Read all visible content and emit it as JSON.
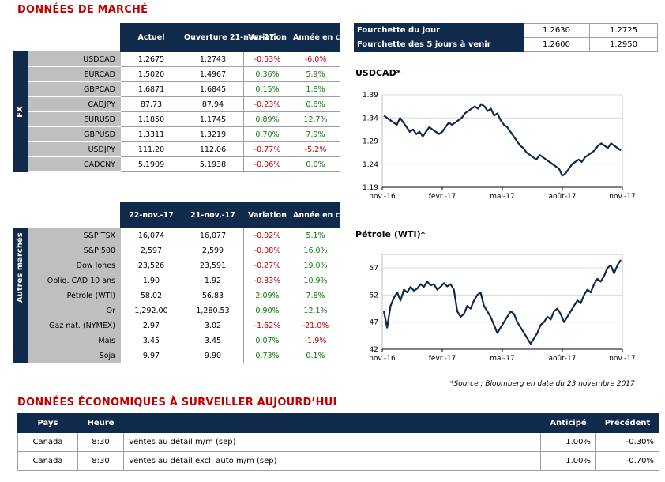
{
  "market_title": "DONNÉES DE MARCHÉ",
  "fx": {
    "side_label": "FX",
    "headers": [
      "Actuel",
      "Ouverture 21-nov.-17",
      "Variation",
      "Année en cours"
    ],
    "rows": [
      {
        "name": "USDCAD",
        "cur": "1.2675",
        "open": "1.2743",
        "var": "-0.53%",
        "ytd": "-6.0%"
      },
      {
        "name": "EURCAD",
        "cur": "1.5020",
        "open": "1.4967",
        "var": "0.36%",
        "ytd": "5.9%"
      },
      {
        "name": "GBPCAD",
        "cur": "1.6871",
        "open": "1.6845",
        "var": "0.15%",
        "ytd": "1.8%"
      },
      {
        "name": "CADJPY",
        "cur": "87.73",
        "open": "87.94",
        "var": "-0.23%",
        "ytd": "0.8%"
      },
      {
        "name": "EURUSD",
        "cur": "1.1850",
        "open": "1.1745",
        "var": "0.89%",
        "ytd": "12.7%"
      },
      {
        "name": "GBPUSD",
        "cur": "1.3311",
        "open": "1.3219",
        "var": "0.70%",
        "ytd": "7.9%"
      },
      {
        "name": "USDJPY",
        "cur": "111.20",
        "open": "112.06",
        "var": "-0.77%",
        "ytd": "-5.2%"
      },
      {
        "name": "CADCNY",
        "cur": "5.1909",
        "open": "5.1938",
        "var": "-0.06%",
        "ytd": "0.0%"
      }
    ]
  },
  "other": {
    "side_label": "Autres marchés",
    "headers": [
      "22-nov.-17",
      "21-nov.-17",
      "Variation",
      "Année en cours"
    ],
    "rows": [
      {
        "name": "S&P TSX",
        "cur": "16,074",
        "open": "16,077",
        "var": "-0.02%",
        "ytd": "5.1%"
      },
      {
        "name": "S&P 500",
        "cur": "2,597",
        "open": "2,599",
        "var": "-0.08%",
        "ytd": "16.0%"
      },
      {
        "name": "Dow Jones",
        "cur": "23,526",
        "open": "23,591",
        "var": "-0.27%",
        "ytd": "19.0%"
      },
      {
        "name": "Oblig. CAD 10 ans",
        "cur": "1.90",
        "open": "1.92",
        "var": "-0.83%",
        "ytd": "10.9%"
      },
      {
        "name": "Pétrole (WTI)",
        "cur": "58.02",
        "open": "56.83",
        "var": "2.09%",
        "ytd": "7.8%"
      },
      {
        "name": "Or",
        "cur": "1,292.00",
        "open": "1,280.53",
        "var": "0.90%",
        "ytd": "12.1%"
      },
      {
        "name": "Gaz nat. (NYMEX)",
        "cur": "2.97",
        "open": "3.02",
        "var": "-1.62%",
        "ytd": "-21.0%"
      },
      {
        "name": "Maïs",
        "cur": "3.45",
        "open": "3.45",
        "var": "0.07%",
        "ytd": "-1.9%"
      },
      {
        "name": "Soja",
        "cur": "9.97",
        "open": "9.90",
        "var": "0.73%",
        "ytd": "0.1%"
      }
    ]
  },
  "ranges": [
    {
      "label": "Fourchette du jour",
      "low": "1.2630",
      "high": "1.2725"
    },
    {
      "label": "Fourchette des 5 jours à venir",
      "low": "1.2600",
      "high": "1.2950"
    }
  ],
  "chart_data": [
    {
      "type": "line",
      "title": "USDCAD*",
      "x_ticks": [
        "nov.-16",
        "févr.-17",
        "mai-17",
        "août-17",
        "nov.-17"
      ],
      "y_ticks": [
        "1.19",
        "1.24",
        "1.29",
        "1.34",
        "1.39"
      ],
      "ylim": [
        1.19,
        1.39
      ],
      "grid": true,
      "series": [
        {
          "values": [
            1.345,
            1.34,
            1.335,
            1.33,
            1.325,
            1.34,
            1.33,
            1.32,
            1.31,
            1.315,
            1.305,
            1.31,
            1.3,
            1.31,
            1.32,
            1.315,
            1.31,
            1.305,
            1.31,
            1.32,
            1.33,
            1.325,
            1.33,
            1.335,
            1.34,
            1.35,
            1.355,
            1.36,
            1.365,
            1.36,
            1.37,
            1.365,
            1.355,
            1.36,
            1.345,
            1.35,
            1.335,
            1.325,
            1.32,
            1.31,
            1.3,
            1.29,
            1.28,
            1.275,
            1.265,
            1.26,
            1.255,
            1.25,
            1.26,
            1.255,
            1.25,
            1.245,
            1.24,
            1.235,
            1.23,
            1.215,
            1.22,
            1.23,
            1.24,
            1.245,
            1.25,
            1.245,
            1.255,
            1.26,
            1.265,
            1.27,
            1.28,
            1.285,
            1.28,
            1.275,
            1.285,
            1.28,
            1.275,
            1.27
          ]
        }
      ]
    },
    {
      "type": "line",
      "title": "Pétrole (WTI)*",
      "x_ticks": [
        "nov.-16",
        "févr.-17",
        "mai-17",
        "août-17",
        "nov.-17"
      ],
      "y_ticks": [
        "42",
        "47",
        "52",
        "57"
      ],
      "ylim": [
        42,
        59.5
      ],
      "grid": true,
      "series": [
        {
          "values": [
            49,
            46,
            50,
            51.5,
            52.5,
            51,
            53,
            52.5,
            53.5,
            52.8,
            53.2,
            54,
            53.5,
            54.5,
            53.8,
            54,
            53,
            53.5,
            54.2,
            53.6,
            54,
            53,
            49,
            48,
            48.5,
            50,
            49.5,
            51,
            52,
            52.5,
            50,
            49,
            48,
            46.5,
            45,
            46,
            47,
            48,
            49,
            48.5,
            47,
            46,
            45,
            44,
            43,
            44,
            45,
            46.5,
            47,
            48,
            47.5,
            49,
            49.5,
            48.5,
            47,
            48,
            49,
            50,
            51,
            50.5,
            52,
            53,
            52.5,
            54,
            55,
            54.5,
            55.5,
            57,
            57.5,
            56,
            57.5,
            58.5
          ]
        }
      ]
    }
  ],
  "source_note": "*Source : Bloomberg en date du  23 novembre 2017",
  "eco_title": "DONNÉES ÉCONOMIQUES À SURVEILLER AUJOURD’HUI",
  "eco": {
    "headers": [
      "Pays",
      "Heure",
      "",
      "Anticipé",
      "Précédent"
    ],
    "rows": [
      {
        "pays": "Canada",
        "heure": "8:30",
        "desc": "Ventes au détail m/m (sep)",
        "ant": "1.00%",
        "prec": "-0.30%"
      },
      {
        "pays": "Canada",
        "heure": "8:30",
        "desc": "Ventes au détail excl. auto m/m (sep)",
        "ant": "1.00%",
        "prec": "-0.70%"
      }
    ]
  },
  "colors": {
    "navy": "#0f2a4a",
    "negative": "#c00000",
    "positive": "#0a7a0a",
    "title": "#c00000"
  }
}
